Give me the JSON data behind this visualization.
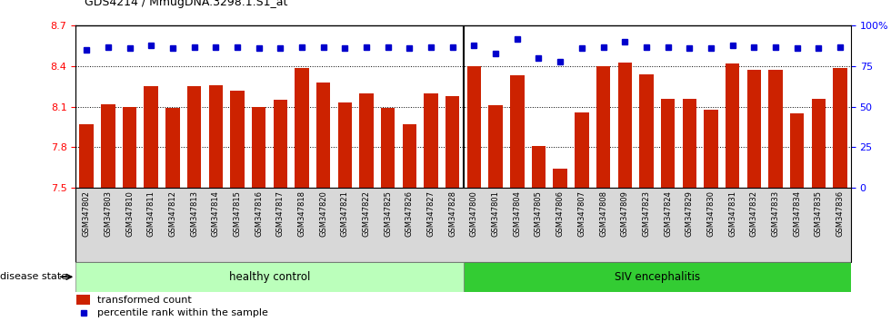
{
  "title": "GDS4214 / MmugDNA.3298.1.S1_at",
  "samples": [
    "GSM347802",
    "GSM347803",
    "GSM347810",
    "GSM347811",
    "GSM347812",
    "GSM347813",
    "GSM347814",
    "GSM347815",
    "GSM347816",
    "GSM347817",
    "GSM347818",
    "GSM347820",
    "GSM347821",
    "GSM347822",
    "GSM347825",
    "GSM347826",
    "GSM347827",
    "GSM347828",
    "GSM347800",
    "GSM347801",
    "GSM347804",
    "GSM347805",
    "GSM347806",
    "GSM347807",
    "GSM347808",
    "GSM347809",
    "GSM347823",
    "GSM347824",
    "GSM347829",
    "GSM347830",
    "GSM347831",
    "GSM347832",
    "GSM347833",
    "GSM347834",
    "GSM347835",
    "GSM347836"
  ],
  "bar_values": [
    7.97,
    8.12,
    8.1,
    8.25,
    8.09,
    8.25,
    8.26,
    8.22,
    8.1,
    8.15,
    8.39,
    8.28,
    8.13,
    8.2,
    8.09,
    7.97,
    8.2,
    8.18,
    8.4,
    8.11,
    8.33,
    7.81,
    7.64,
    8.06,
    8.4,
    8.43,
    8.34,
    8.16,
    8.16,
    8.08,
    8.42,
    8.37,
    8.37,
    8.05,
    8.16,
    8.39
  ],
  "percentile_values": [
    85,
    87,
    86,
    88,
    86,
    87,
    87,
    87,
    86,
    86,
    87,
    87,
    86,
    87,
    87,
    86,
    87,
    87,
    88,
    83,
    92,
    80,
    78,
    86,
    87,
    90,
    87,
    87,
    86,
    86,
    88,
    87,
    87,
    86,
    86,
    87
  ],
  "healthy_count": 18,
  "ylim_left": [
    7.5,
    8.7
  ],
  "ylim_right": [
    0,
    100
  ],
  "bar_color": "#cc2200",
  "percentile_color": "#0000cc",
  "healthy_color": "#bbffbb",
  "siv_color": "#33cc33",
  "yticks_left": [
    7.5,
    7.8,
    8.1,
    8.4,
    8.7
  ],
  "yticks_right": [
    0,
    25,
    50,
    75,
    100
  ],
  "legend_transformed": "transformed count",
  "legend_percentile": "percentile rank within the sample",
  "label_healthy": "healthy control",
  "label_siv": "SIV encephalitis",
  "label_disease": "disease state"
}
